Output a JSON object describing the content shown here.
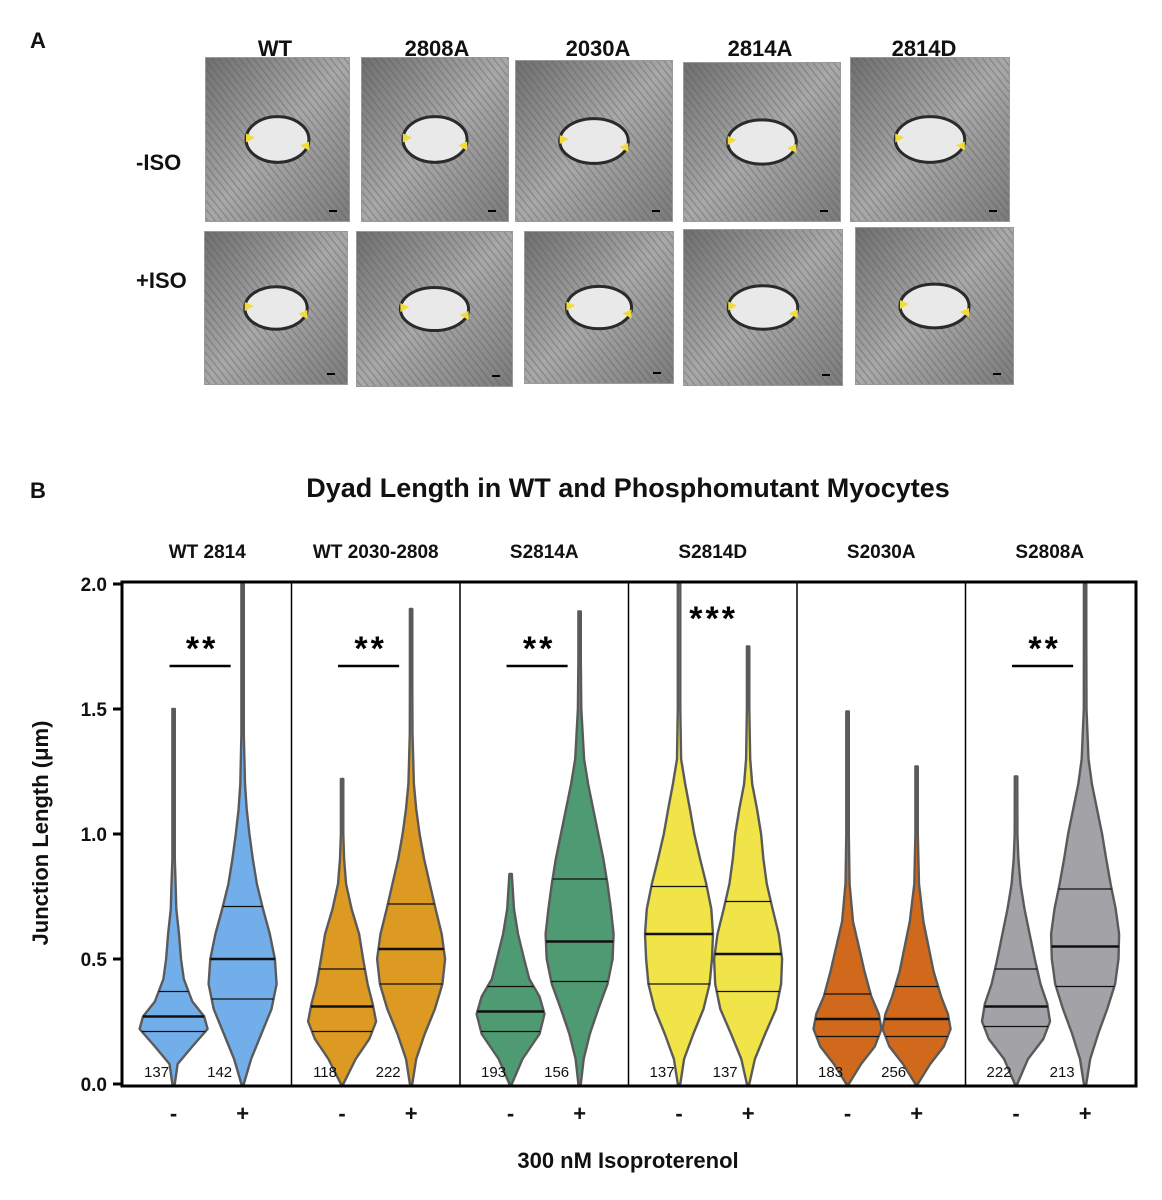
{
  "panel_a": {
    "letter": "A",
    "columns": [
      "WT",
      "2808A",
      "2030A",
      "2814A",
      "2814D"
    ],
    "rows": [
      "-ISO",
      "+ISO"
    ],
    "marker_color": "#f2dc3c"
  },
  "panel_b": {
    "letter": "B"
  },
  "chart_data": {
    "type": "violin",
    "title": "Dyad Length in WT and Phosphomutant Myocytes",
    "ylabel": "Junction Length (μm)",
    "xlabel": "300 nM Isoproterenol",
    "ylim": [
      0,
      2.0
    ],
    "yticks": [
      "0.0",
      "0.5",
      "1.0",
      "1.5",
      "2.0"
    ],
    "x_tick_labels": [
      "-",
      "+"
    ],
    "groups": [
      {
        "name": "WT 2814",
        "color": "#72aeea",
        "significance": "**",
        "violins": [
          {
            "condition": "-",
            "n": "137",
            "min": 0.0,
            "max": 1.5,
            "q1": 0.21,
            "median": 0.27,
            "q3": 0.37,
            "profile": [
              [
                0.0,
                0.0
              ],
              [
                0.08,
                0.12
              ],
              [
                0.15,
                0.55
              ],
              [
                0.22,
                1.0
              ],
              [
                0.27,
                0.9
              ],
              [
                0.33,
                0.55
              ],
              [
                0.42,
                0.3
              ],
              [
                0.5,
                0.22
              ],
              [
                0.6,
                0.16
              ],
              [
                0.7,
                0.08
              ],
              [
                0.8,
                0.06
              ],
              [
                0.9,
                0.03
              ],
              [
                1.1,
                0.015
              ],
              [
                1.3,
                0.01
              ],
              [
                1.5,
                0.0
              ]
            ]
          },
          {
            "condition": "+",
            "n": "142",
            "min": 0.0,
            "max": 2.0,
            "q1": 0.34,
            "median": 0.5,
            "q3": 0.71,
            "profile": [
              [
                0.0,
                0.0
              ],
              [
                0.1,
                0.25
              ],
              [
                0.2,
                0.55
              ],
              [
                0.3,
                0.85
              ],
              [
                0.4,
                1.0
              ],
              [
                0.5,
                0.95
              ],
              [
                0.6,
                0.8
              ],
              [
                0.7,
                0.6
              ],
              [
                0.8,
                0.42
              ],
              [
                0.9,
                0.3
              ],
              [
                1.0,
                0.2
              ],
              [
                1.1,
                0.12
              ],
              [
                1.2,
                0.07
              ],
              [
                1.4,
                0.03
              ],
              [
                1.6,
                0.015
              ],
              [
                1.8,
                0.008
              ],
              [
                2.0,
                0.0
              ]
            ]
          }
        ]
      },
      {
        "name": "WT 2030-2808",
        "color": "#dc9a22",
        "significance": "**",
        "violins": [
          {
            "condition": "-",
            "n": "118",
            "min": 0.0,
            "max": 1.22,
            "q1": 0.21,
            "median": 0.31,
            "q3": 0.46,
            "profile": [
              [
                0.0,
                0.0
              ],
              [
                0.1,
                0.4
              ],
              [
                0.18,
                0.8
              ],
              [
                0.25,
                1.0
              ],
              [
                0.32,
                0.9
              ],
              [
                0.4,
                0.75
              ],
              [
                0.5,
                0.62
              ],
              [
                0.6,
                0.5
              ],
              [
                0.7,
                0.28
              ],
              [
                0.8,
                0.12
              ],
              [
                0.9,
                0.06
              ],
              [
                1.0,
                0.03
              ],
              [
                1.22,
                0.0
              ]
            ]
          },
          {
            "condition": "+",
            "n": "222",
            "min": 0.0,
            "max": 1.9,
            "q1": 0.4,
            "median": 0.54,
            "q3": 0.72,
            "profile": [
              [
                0.0,
                0.0
              ],
              [
                0.1,
                0.15
              ],
              [
                0.2,
                0.4
              ],
              [
                0.3,
                0.7
              ],
              [
                0.4,
                0.92
              ],
              [
                0.5,
                1.0
              ],
              [
                0.6,
                0.9
              ],
              [
                0.7,
                0.72
              ],
              [
                0.8,
                0.55
              ],
              [
                0.9,
                0.38
              ],
              [
                1.0,
                0.25
              ],
              [
                1.1,
                0.15
              ],
              [
                1.2,
                0.08
              ],
              [
                1.4,
                0.04
              ],
              [
                1.6,
                0.02
              ],
              [
                1.9,
                0.0
              ]
            ]
          }
        ]
      },
      {
        "name": "S2814A",
        "color": "#4e9a72",
        "significance": "**",
        "violins": [
          {
            "condition": "-",
            "n": "193",
            "min": 0.0,
            "max": 0.84,
            "q1": 0.21,
            "median": 0.29,
            "q3": 0.39,
            "profile": [
              [
                0.0,
                0.0
              ],
              [
                0.1,
                0.35
              ],
              [
                0.2,
                0.85
              ],
              [
                0.28,
                1.0
              ],
              [
                0.35,
                0.85
              ],
              [
                0.42,
                0.55
              ],
              [
                0.5,
                0.4
              ],
              [
                0.6,
                0.22
              ],
              [
                0.7,
                0.1
              ],
              [
                0.84,
                0.0
              ]
            ]
          },
          {
            "condition": "+",
            "n": "156",
            "min": 0.0,
            "max": 1.89,
            "q1": 0.41,
            "median": 0.57,
            "q3": 0.82,
            "profile": [
              [
                0.0,
                0.0
              ],
              [
                0.1,
                0.12
              ],
              [
                0.2,
                0.3
              ],
              [
                0.3,
                0.55
              ],
              [
                0.4,
                0.82
              ],
              [
                0.5,
                0.97
              ],
              [
                0.6,
                1.0
              ],
              [
                0.7,
                0.92
              ],
              [
                0.8,
                0.82
              ],
              [
                0.9,
                0.7
              ],
              [
                1.0,
                0.55
              ],
              [
                1.1,
                0.4
              ],
              [
                1.2,
                0.25
              ],
              [
                1.3,
                0.13
              ],
              [
                1.5,
                0.05
              ],
              [
                1.7,
                0.02
              ],
              [
                1.89,
                0.0
              ]
            ]
          }
        ]
      },
      {
        "name": "S2814D",
        "color": "#f0e448",
        "significance": "***",
        "violins": [
          {
            "condition": "-",
            "n": "137",
            "min": 0.0,
            "max": 2.0,
            "q1": 0.4,
            "median": 0.6,
            "q3": 0.79,
            "profile": [
              [
                0.0,
                0.0
              ],
              [
                0.1,
                0.15
              ],
              [
                0.2,
                0.42
              ],
              [
                0.3,
                0.72
              ],
              [
                0.4,
                0.9
              ],
              [
                0.5,
                0.97
              ],
              [
                0.6,
                1.0
              ],
              [
                0.7,
                0.95
              ],
              [
                0.8,
                0.8
              ],
              [
                0.9,
                0.62
              ],
              [
                1.0,
                0.45
              ],
              [
                1.1,
                0.32
              ],
              [
                1.2,
                0.18
              ],
              [
                1.3,
                0.06
              ],
              [
                1.5,
                0.02
              ],
              [
                1.8,
                0.01
              ],
              [
                2.0,
                0.0
              ]
            ]
          },
          {
            "condition": "+",
            "n": "137",
            "min": 0.0,
            "max": 1.75,
            "q1": 0.37,
            "median": 0.52,
            "q3": 0.73,
            "profile": [
              [
                0.0,
                0.0
              ],
              [
                0.1,
                0.2
              ],
              [
                0.2,
                0.5
              ],
              [
                0.3,
                0.82
              ],
              [
                0.4,
                0.97
              ],
              [
                0.5,
                1.0
              ],
              [
                0.6,
                0.9
              ],
              [
                0.7,
                0.72
              ],
              [
                0.8,
                0.55
              ],
              [
                0.9,
                0.45
              ],
              [
                1.0,
                0.38
              ],
              [
                1.1,
                0.26
              ],
              [
                1.2,
                0.12
              ],
              [
                1.3,
                0.06
              ],
              [
                1.5,
                0.02
              ],
              [
                1.75,
                0.0
              ]
            ]
          }
        ]
      },
      {
        "name": "S2030A",
        "color": "#d0691c",
        "significance": "",
        "violins": [
          {
            "condition": "-",
            "n": "183",
            "min": 0.0,
            "max": 1.49,
            "q1": 0.19,
            "median": 0.26,
            "q3": 0.36,
            "profile": [
              [
                0.0,
                0.0
              ],
              [
                0.08,
                0.4
              ],
              [
                0.15,
                0.8
              ],
              [
                0.22,
                1.0
              ],
              [
                0.28,
                0.92
              ],
              [
                0.35,
                0.7
              ],
              [
                0.45,
                0.5
              ],
              [
                0.55,
                0.33
              ],
              [
                0.65,
                0.16
              ],
              [
                0.8,
                0.06
              ],
              [
                1.0,
                0.03
              ],
              [
                1.2,
                0.015
              ],
              [
                1.49,
                0.0
              ]
            ]
          },
          {
            "condition": "+",
            "n": "256",
            "min": 0.0,
            "max": 1.27,
            "q1": 0.19,
            "median": 0.26,
            "q3": 0.39,
            "profile": [
              [
                0.0,
                0.0
              ],
              [
                0.08,
                0.4
              ],
              [
                0.15,
                0.8
              ],
              [
                0.22,
                1.0
              ],
              [
                0.28,
                0.92
              ],
              [
                0.35,
                0.72
              ],
              [
                0.45,
                0.5
              ],
              [
                0.55,
                0.35
              ],
              [
                0.65,
                0.2
              ],
              [
                0.8,
                0.07
              ],
              [
                1.0,
                0.03
              ],
              [
                1.27,
                0.0
              ]
            ]
          }
        ]
      },
      {
        "name": "S2808A",
        "color": "#a3a3a7",
        "significance": "**",
        "violins": [
          {
            "condition": "-",
            "n": "222",
            "min": 0.0,
            "max": 1.23,
            "q1": 0.23,
            "median": 0.31,
            "q3": 0.46,
            "profile": [
              [
                0.0,
                0.0
              ],
              [
                0.1,
                0.35
              ],
              [
                0.18,
                0.8
              ],
              [
                0.25,
                1.0
              ],
              [
                0.32,
                0.92
              ],
              [
                0.4,
                0.72
              ],
              [
                0.5,
                0.55
              ],
              [
                0.6,
                0.4
              ],
              [
                0.7,
                0.25
              ],
              [
                0.8,
                0.13
              ],
              [
                0.9,
                0.07
              ],
              [
                1.0,
                0.04
              ],
              [
                1.23,
                0.0
              ]
            ]
          },
          {
            "condition": "+",
            "n": "213",
            "min": 0.0,
            "max": 2.0,
            "q1": 0.39,
            "median": 0.55,
            "q3": 0.78,
            "profile": [
              [
                0.0,
                0.0
              ],
              [
                0.1,
                0.15
              ],
              [
                0.2,
                0.38
              ],
              [
                0.3,
                0.65
              ],
              [
                0.4,
                0.88
              ],
              [
                0.5,
                0.98
              ],
              [
                0.6,
                1.0
              ],
              [
                0.7,
                0.9
              ],
              [
                0.8,
                0.75
              ],
              [
                0.9,
                0.62
              ],
              [
                1.0,
                0.5
              ],
              [
                1.1,
                0.35
              ],
              [
                1.2,
                0.2
              ],
              [
                1.3,
                0.1
              ],
              [
                1.5,
                0.04
              ],
              [
                1.8,
                0.01
              ],
              [
                2.0,
                0.0
              ]
            ]
          }
        ]
      }
    ]
  }
}
